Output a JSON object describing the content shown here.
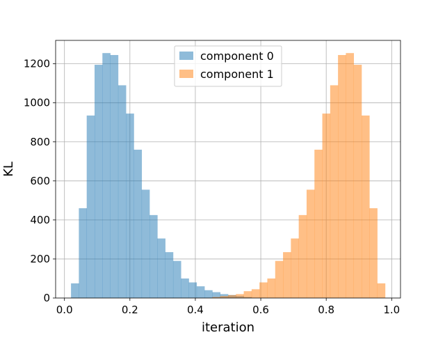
{
  "chart_data": {
    "type": "histogram",
    "xlabel": "iteration",
    "ylabel": "KL",
    "xlim": [
      -0.027,
      1.027
    ],
    "ylim": [
      0,
      1320
    ],
    "xticks": [
      0.0,
      0.2,
      0.4,
      0.6,
      0.8,
      1.0
    ],
    "xtick_labels": [
      "0.0",
      "0.2",
      "0.4",
      "0.6",
      "0.8",
      "1.0"
    ],
    "yticks": [
      0,
      200,
      400,
      600,
      800,
      1000,
      1200
    ],
    "ytick_labels": [
      "0",
      "200",
      "400",
      "600",
      "800",
      "1000",
      "1200"
    ],
    "grid": true,
    "legend_position": "top-center",
    "bin_edges": [
      0.02,
      0.044,
      0.068,
      0.092,
      0.116,
      0.14,
      0.164,
      0.188,
      0.212,
      0.236,
      0.26,
      0.284,
      0.308,
      0.332,
      0.356,
      0.38,
      0.404,
      0.428,
      0.452,
      0.476,
      0.5,
      0.524,
      0.548,
      0.572,
      0.596,
      0.62,
      0.644,
      0.668,
      0.692,
      0.716,
      0.74,
      0.764,
      0.788,
      0.812,
      0.836,
      0.86,
      0.884,
      0.908,
      0.932,
      0.956,
      0.98
    ],
    "series": [
      {
        "name": "component 0",
        "color": "#1f77b4",
        "alpha": 0.5,
        "values": [
          75,
          460,
          935,
          1195,
          1255,
          1245,
          1090,
          945,
          760,
          555,
          425,
          305,
          235,
          190,
          100,
          80,
          60,
          40,
          30,
          20,
          15,
          10,
          5,
          0,
          0,
          0,
          0,
          0,
          0,
          0,
          0,
          0,
          0,
          0,
          0,
          0,
          0,
          0,
          0,
          0
        ]
      },
      {
        "name": "component 1",
        "color": "#ff7f0e",
        "alpha": 0.5,
        "values": [
          0,
          0,
          0,
          0,
          0,
          0,
          0,
          0,
          0,
          0,
          0,
          0,
          0,
          0,
          0,
          0,
          0,
          0,
          5,
          10,
          15,
          20,
          35,
          45,
          80,
          100,
          190,
          235,
          305,
          425,
          555,
          760,
          945,
          1090,
          1245,
          1255,
          1195,
          935,
          460,
          75
        ]
      }
    ]
  }
}
